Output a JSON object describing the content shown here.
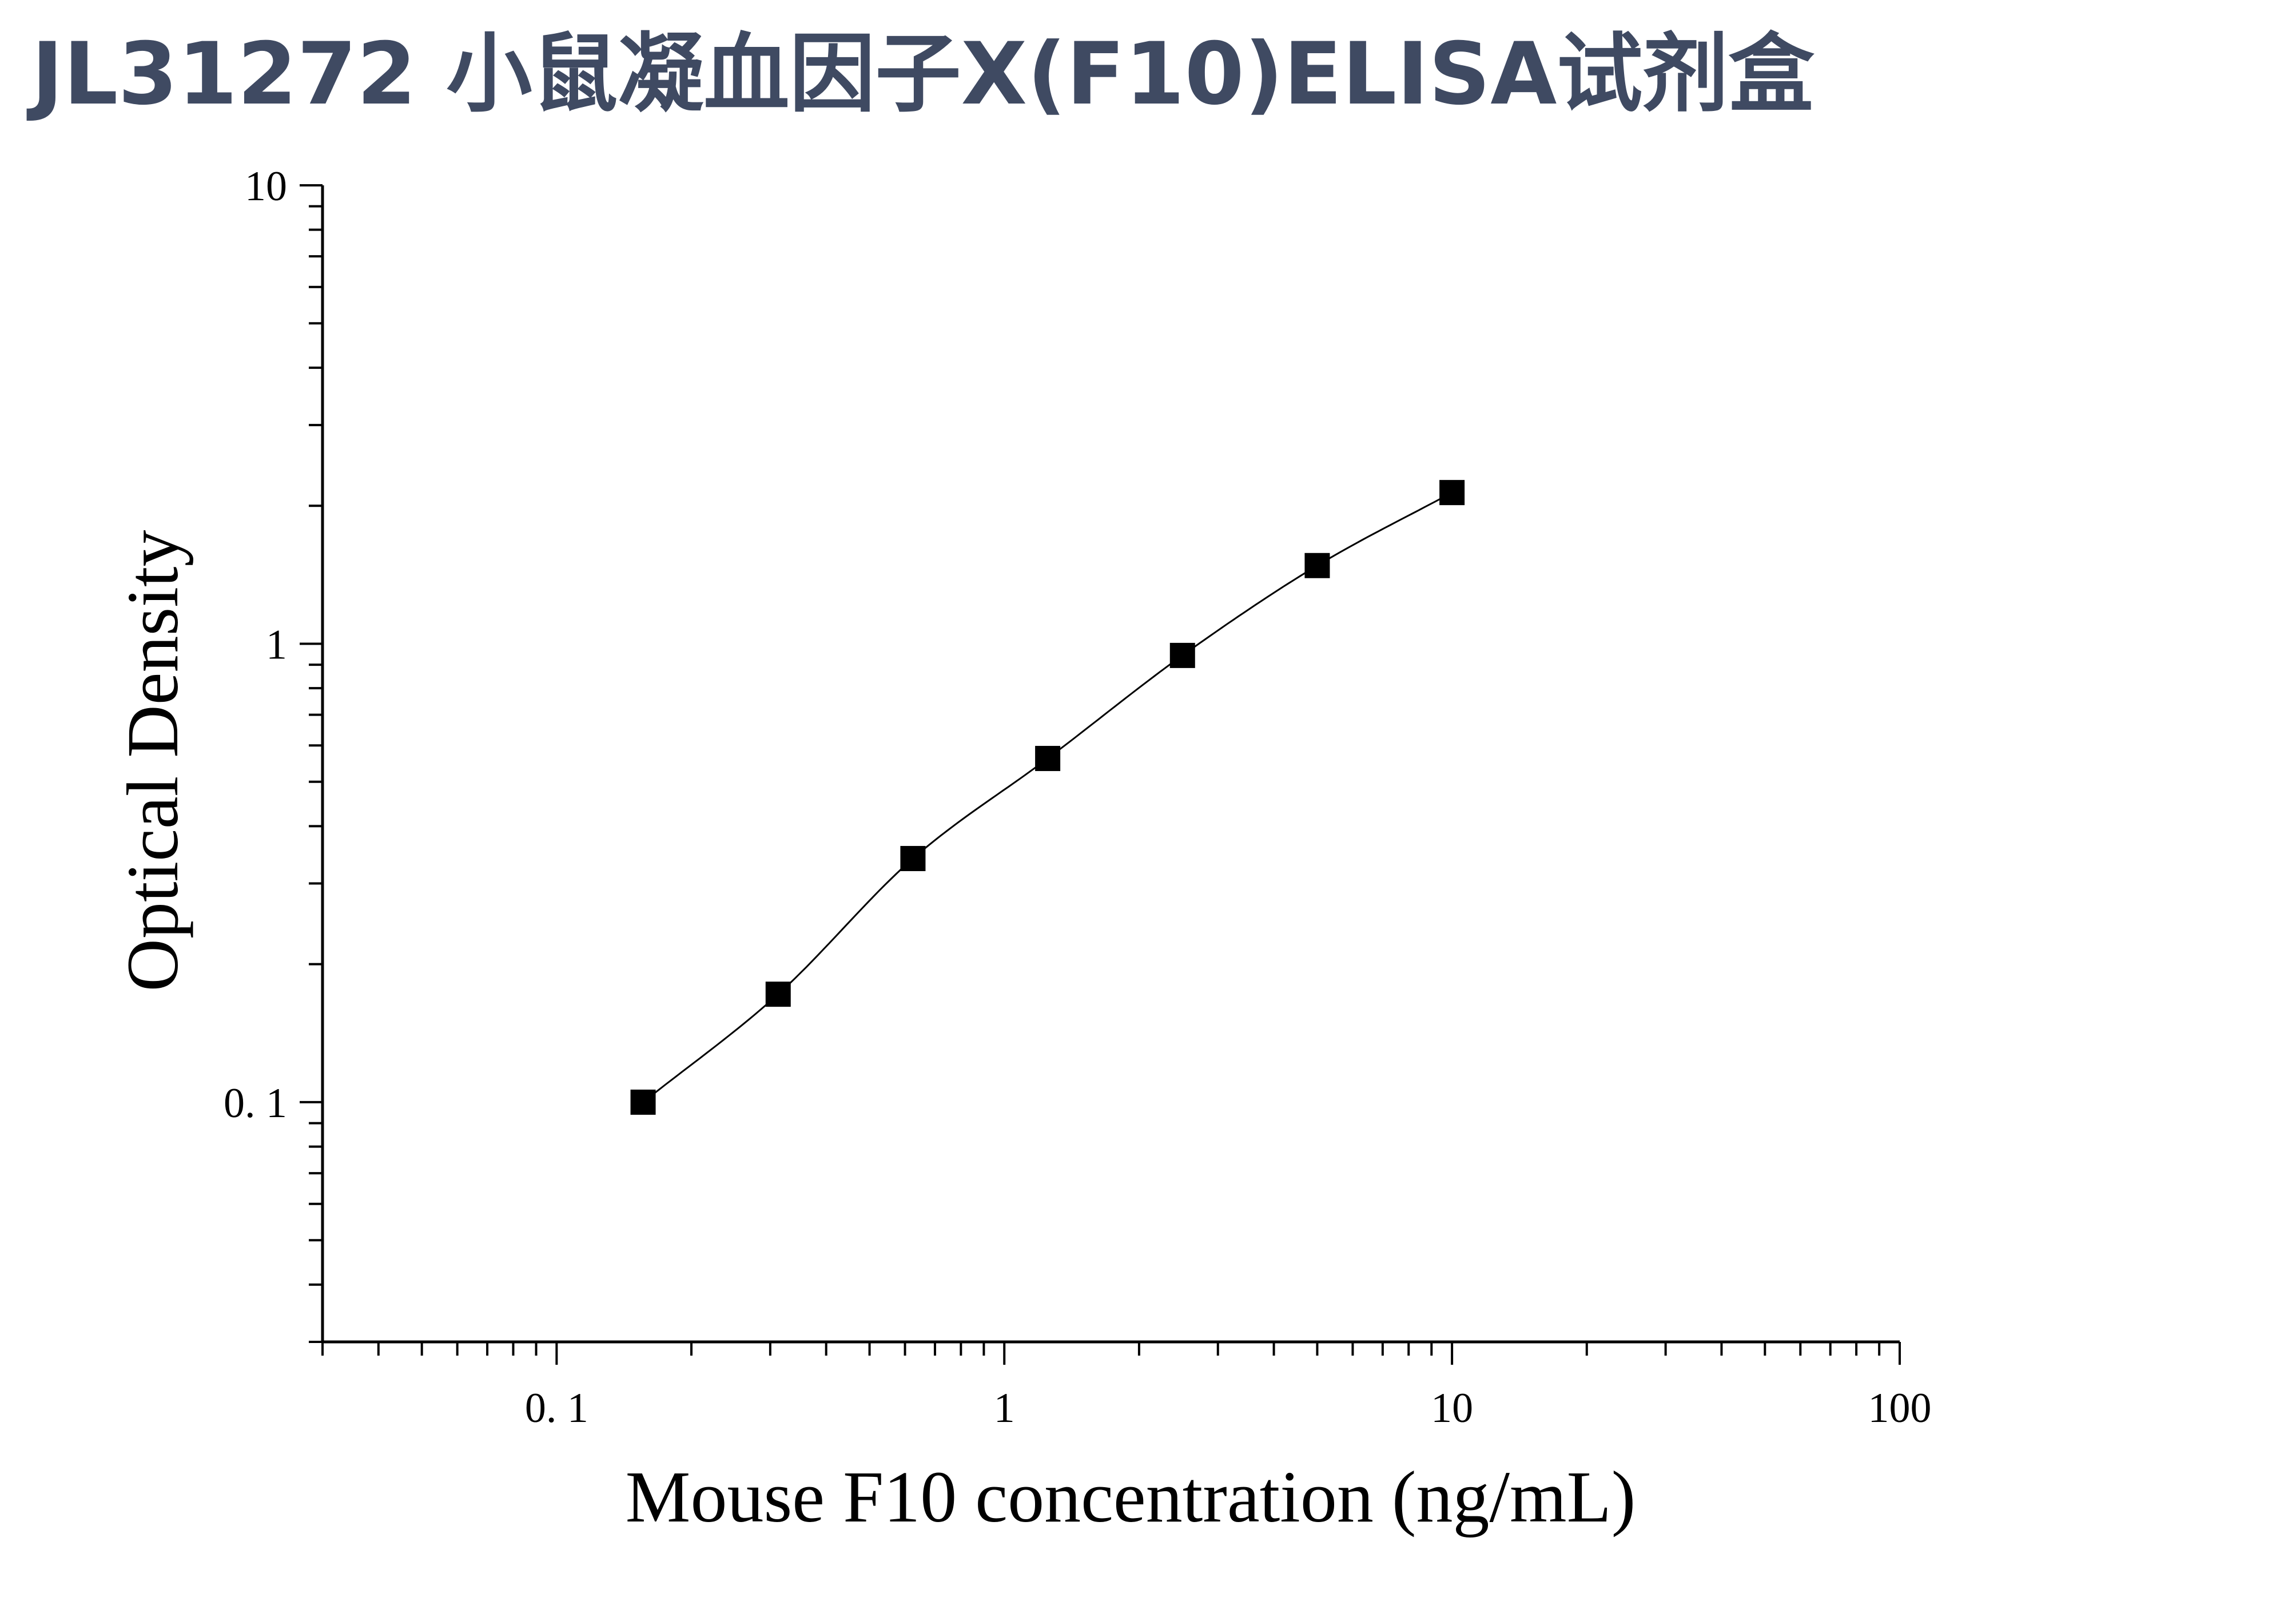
{
  "title": "JL31272 小鼠凝血因子X(F10)ELISA试剂盒",
  "chart_data": {
    "type": "scatter",
    "xscale": "log",
    "yscale": "log",
    "xlim": [
      0.03,
      100
    ],
    "ylim": [
      0.03,
      10
    ],
    "xlabel": "Mouse F10 concentration (ng/mL)",
    "ylabel": "Optical Density",
    "xticks": [
      {
        "value": 0.1,
        "label": "0. 1"
      },
      {
        "value": 1,
        "label": "1"
      },
      {
        "value": 10,
        "label": "10"
      },
      {
        "value": 100,
        "label": "100"
      }
    ],
    "yticks": [
      {
        "value": 0.1,
        "label": "0. 1"
      },
      {
        "value": 1,
        "label": "1"
      },
      {
        "value": 10,
        "label": "10"
      }
    ],
    "series": [
      {
        "x": [
          0.156,
          0.3125,
          0.625,
          1.25,
          2.5,
          5,
          10
        ],
        "y": [
          0.1,
          0.172,
          0.34,
          0.562,
          0.943,
          1.481,
          2.137
        ],
        "marker": "square",
        "fit_line": true,
        "color": "#000000"
      }
    ],
    "grid": false,
    "legend": "none"
  }
}
